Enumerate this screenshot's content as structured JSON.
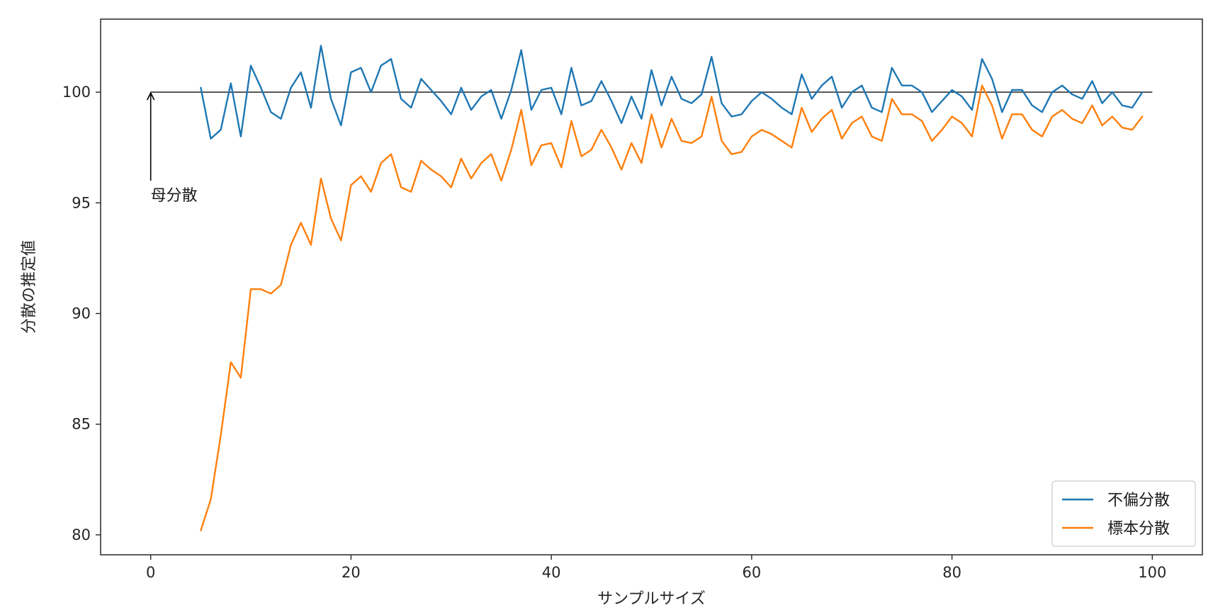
{
  "chart_data": {
    "type": "line",
    "title": "",
    "xlabel": "サンプルサイズ",
    "ylabel": "分散の推定値",
    "xlim": [
      -5,
      105
    ],
    "ylim": [
      79.1,
      103.3
    ],
    "xticks": [
      0,
      20,
      40,
      60,
      80,
      100
    ],
    "yticks": [
      80,
      85,
      90,
      95,
      100
    ],
    "grid": false,
    "legend": {
      "position": "bottom-right"
    },
    "reference_line": {
      "y": 100,
      "x_range": [
        0,
        100
      ],
      "color": "#333333"
    },
    "annotation": {
      "text": "母分散",
      "from": [
        0,
        96
      ],
      "to": [
        0,
        100
      ]
    },
    "x": [
      5,
      6,
      7,
      8,
      9,
      10,
      11,
      12,
      13,
      14,
      15,
      16,
      17,
      18,
      19,
      20,
      21,
      22,
      23,
      24,
      25,
      26,
      27,
      28,
      29,
      30,
      31,
      32,
      33,
      34,
      35,
      36,
      37,
      38,
      39,
      40,
      41,
      42,
      43,
      44,
      45,
      46,
      47,
      48,
      49,
      50,
      51,
      52,
      53,
      54,
      55,
      56,
      57,
      58,
      59,
      60,
      61,
      62,
      63,
      64,
      65,
      66,
      67,
      68,
      69,
      70,
      71,
      72,
      73,
      74,
      75,
      76,
      77,
      78,
      79,
      80,
      81,
      82,
      83,
      84,
      85,
      86,
      87,
      88,
      89,
      90,
      91,
      92,
      93,
      94,
      95,
      96,
      97,
      98,
      99
    ],
    "series": [
      {
        "name": "不偏分散",
        "color": "#1f77b4",
        "values": [
          100.2,
          97.9,
          98.3,
          100.4,
          98.0,
          101.2,
          100.2,
          99.1,
          98.8,
          100.2,
          100.9,
          99.3,
          102.1,
          99.7,
          98.5,
          100.9,
          101.1,
          100.0,
          101.2,
          101.5,
          99.7,
          99.3,
          100.6,
          100.1,
          99.6,
          99.0,
          100.2,
          99.2,
          99.8,
          100.1,
          98.8,
          100.1,
          101.9,
          99.2,
          100.1,
          100.2,
          99.0,
          101.1,
          99.4,
          99.6,
          100.5,
          99.6,
          98.6,
          99.8,
          98.8,
          101.0,
          99.4,
          100.7,
          99.7,
          99.5,
          99.9,
          101.6,
          99.5,
          98.9,
          99.0,
          99.6,
          100.0,
          99.7,
          99.3,
          99.0,
          100.8,
          99.7,
          100.3,
          100.7,
          99.3,
          100.0,
          100.3,
          99.3,
          99.1,
          101.1,
          100.3,
          100.3,
          100.0,
          99.1,
          99.6,
          100.1,
          99.8,
          99.2,
          101.5,
          100.6,
          99.1,
          100.1,
          100.1,
          99.4,
          99.1,
          100.0,
          100.3,
          99.9,
          99.7,
          100.5,
          99.5,
          100.0,
          99.4,
          99.3,
          100.0
        ]
      },
      {
        "name": "標本分散",
        "color": "#ff7f0e",
        "values": [
          80.2,
          81.6,
          84.5,
          87.8,
          87.1,
          91.1,
          91.1,
          90.9,
          91.3,
          93.1,
          94.1,
          93.1,
          96.1,
          94.3,
          93.3,
          95.8,
          96.2,
          95.5,
          96.8,
          97.2,
          95.7,
          95.5,
          96.9,
          96.5,
          96.2,
          95.7,
          97.0,
          96.1,
          96.8,
          97.2,
          96.0,
          97.4,
          99.2,
          96.7,
          97.6,
          97.7,
          96.6,
          98.7,
          97.1,
          97.4,
          98.3,
          97.5,
          96.5,
          97.7,
          96.8,
          99.0,
          97.5,
          98.8,
          97.8,
          97.7,
          98.0,
          99.8,
          97.8,
          97.2,
          97.3,
          98.0,
          98.3,
          98.1,
          97.8,
          97.5,
          99.3,
          98.2,
          98.8,
          99.2,
          97.9,
          98.6,
          98.9,
          98.0,
          97.8,
          99.7,
          99.0,
          99.0,
          98.7,
          97.8,
          98.3,
          98.9,
          98.6,
          98.0,
          100.3,
          99.4,
          97.9,
          99.0,
          99.0,
          98.3,
          98.0,
          98.9,
          99.2,
          98.8,
          98.6,
          99.4,
          98.5,
          98.9,
          98.4,
          98.3,
          98.9
        ]
      }
    ]
  }
}
